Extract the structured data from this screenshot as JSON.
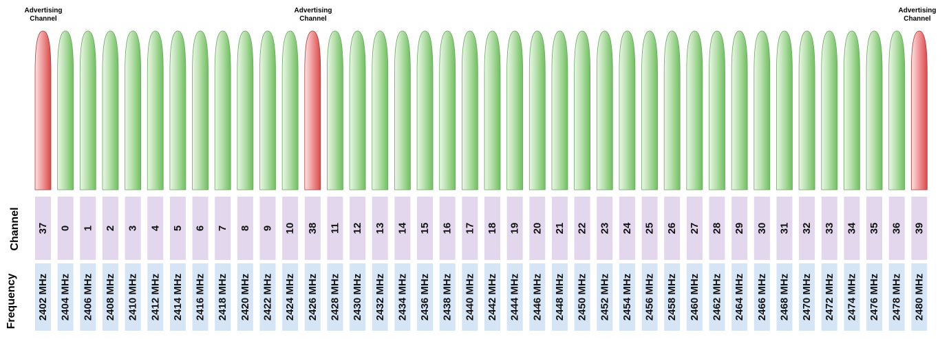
{
  "labels": {
    "advertising_channel": [
      "Advertising",
      "Channel"
    ],
    "channel_row": "Channel",
    "frequency_row": "Frequency"
  },
  "colors": {
    "advertising_fill": "#e85f5f",
    "data_fill": "#7ccb6e",
    "channel_cell": "#e2d7ec",
    "frequency_cell": "#d6e5f6"
  },
  "channels": [
    {
      "channel": "37",
      "frequency": "2402 MHz",
      "advertising": true
    },
    {
      "channel": "0",
      "frequency": "2404 MHz",
      "advertising": false
    },
    {
      "channel": "1",
      "frequency": "2406 MHz",
      "advertising": false
    },
    {
      "channel": "2",
      "frequency": "2408 MHz",
      "advertising": false
    },
    {
      "channel": "3",
      "frequency": "2410 MHz",
      "advertising": false
    },
    {
      "channel": "4",
      "frequency": "2412 MHz",
      "advertising": false
    },
    {
      "channel": "5",
      "frequency": "2414 MHz",
      "advertising": false
    },
    {
      "channel": "6",
      "frequency": "2416 MHz",
      "advertising": false
    },
    {
      "channel": "7",
      "frequency": "2418 MHz",
      "advertising": false
    },
    {
      "channel": "8",
      "frequency": "2420 MHz",
      "advertising": false
    },
    {
      "channel": "9",
      "frequency": "2422 MHz",
      "advertising": false
    },
    {
      "channel": "10",
      "frequency": "2424 MHz",
      "advertising": false
    },
    {
      "channel": "38",
      "frequency": "2426 MHz",
      "advertising": true
    },
    {
      "channel": "11",
      "frequency": "2428 MHz",
      "advertising": false
    },
    {
      "channel": "12",
      "frequency": "2430 MHz",
      "advertising": false
    },
    {
      "channel": "13",
      "frequency": "2432 MHz",
      "advertising": false
    },
    {
      "channel": "14",
      "frequency": "2434 MHz",
      "advertising": false
    },
    {
      "channel": "15",
      "frequency": "2436 MHz",
      "advertising": false
    },
    {
      "channel": "16",
      "frequency": "2438 MHz",
      "advertising": false
    },
    {
      "channel": "17",
      "frequency": "2440 MHz",
      "advertising": false
    },
    {
      "channel": "18",
      "frequency": "2442 MHz",
      "advertising": false
    },
    {
      "channel": "19",
      "frequency": "2444 MHz",
      "advertising": false
    },
    {
      "channel": "20",
      "frequency": "2446 MHz",
      "advertising": false
    },
    {
      "channel": "21",
      "frequency": "2448 MHz",
      "advertising": false
    },
    {
      "channel": "22",
      "frequency": "2450 MHz",
      "advertising": false
    },
    {
      "channel": "23",
      "frequency": "2452 MHz",
      "advertising": false
    },
    {
      "channel": "24",
      "frequency": "2454 MHz",
      "advertising": false
    },
    {
      "channel": "25",
      "frequency": "2456 MHz",
      "advertising": false
    },
    {
      "channel": "26",
      "frequency": "2458 MHz",
      "advertising": false
    },
    {
      "channel": "27",
      "frequency": "2460 MHz",
      "advertising": false
    },
    {
      "channel": "28",
      "frequency": "2462 MHz",
      "advertising": false
    },
    {
      "channel": "29",
      "frequency": "2464 MHz",
      "advertising": false
    },
    {
      "channel": "30",
      "frequency": "2466 MHz",
      "advertising": false
    },
    {
      "channel": "31",
      "frequency": "2468 MHz",
      "advertising": false
    },
    {
      "channel": "32",
      "frequency": "2470 MHz",
      "advertising": false
    },
    {
      "channel": "33",
      "frequency": "2472 MHz",
      "advertising": false
    },
    {
      "channel": "34",
      "frequency": "2474 MHz",
      "advertising": false
    },
    {
      "channel": "35",
      "frequency": "2476 MHz",
      "advertising": false
    },
    {
      "channel": "36",
      "frequency": "2478 MHz",
      "advertising": false
    },
    {
      "channel": "39",
      "frequency": "2480 MHz",
      "advertising": true
    }
  ]
}
